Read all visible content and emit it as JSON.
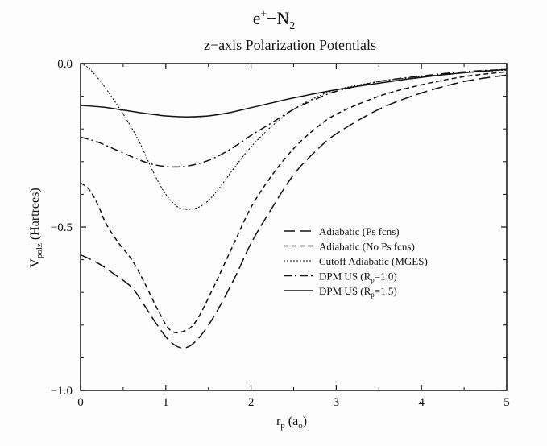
{
  "title": {
    "main_base": "e",
    "main_sup": "+",
    "main_dash": "−N",
    "main_sub": "2",
    "subtitle": "z−axis Polarization Potentials"
  },
  "chart_data": {
    "type": "line",
    "xlabel": {
      "base": "r",
      "sub": "p",
      "rest": " (a",
      "sub2": "o",
      "close": ")"
    },
    "ylabel": {
      "base": "V",
      "sub": "polz",
      "rest": " (Hartrees)"
    },
    "xlim": [
      0,
      5
    ],
    "ylim": [
      -1.0,
      0.0
    ],
    "xticks": [
      0,
      1,
      2,
      3,
      4,
      5
    ],
    "xtick_labels": [
      "0",
      "1",
      "2",
      "3",
      "4",
      "5"
    ],
    "yticks": [
      0.0,
      -0.5,
      -1.0
    ],
    "ytick_labels": [
      "0.0",
      "−0.5",
      "−1.0"
    ],
    "grid": false,
    "legend_position": "center-right",
    "series": [
      {
        "name": "Adiabatic (Ps fcns)",
        "dash": "14,6",
        "x": [
          0,
          0.2,
          0.4,
          0.6,
          0.75,
          0.9,
          1.05,
          1.2,
          1.35,
          1.55,
          1.8,
          2.0,
          2.25,
          2.5,
          2.75,
          3.0,
          3.5,
          4.0,
          4.5,
          5.0
        ],
        "y": [
          -0.585,
          -0.61,
          -0.645,
          -0.685,
          -0.74,
          -0.8,
          -0.85,
          -0.87,
          -0.85,
          -0.78,
          -0.66,
          -0.55,
          -0.44,
          -0.34,
          -0.27,
          -0.215,
          -0.14,
          -0.09,
          -0.055,
          -0.035
        ]
      },
      {
        "name": "Adiabatic (No Ps fcns)",
        "dash": "6,4",
        "x": [
          0,
          0.1,
          0.2,
          0.3,
          0.45,
          0.6,
          0.75,
          0.9,
          1.05,
          1.2,
          1.35,
          1.55,
          1.8,
          2.0,
          2.25,
          2.5,
          2.75,
          3.0,
          3.5,
          4.0,
          4.5,
          5.0
        ],
        "y": [
          -0.365,
          -0.385,
          -0.43,
          -0.49,
          -0.55,
          -0.6,
          -0.67,
          -0.75,
          -0.815,
          -0.82,
          -0.79,
          -0.69,
          -0.55,
          -0.44,
          -0.34,
          -0.26,
          -0.2,
          -0.155,
          -0.1,
          -0.065,
          -0.04,
          -0.025
        ]
      },
      {
        "name": "Cutoff Adiabatic (MGES)",
        "dash": "2,2",
        "x": [
          0,
          0.1,
          0.25,
          0.4,
          0.55,
          0.7,
          0.85,
          1.0,
          1.15,
          1.3,
          1.45,
          1.6,
          1.8,
          2.0,
          2.25,
          2.5,
          2.75,
          3.0,
          3.5,
          4.0,
          4.5,
          5.0
        ],
        "y": [
          0.0,
          -0.015,
          -0.06,
          -0.115,
          -0.175,
          -0.245,
          -0.33,
          -0.4,
          -0.44,
          -0.445,
          -0.43,
          -0.39,
          -0.32,
          -0.255,
          -0.19,
          -0.14,
          -0.105,
          -0.08,
          -0.055,
          -0.04,
          -0.028,
          -0.02
        ]
      },
      {
        "name": "DPM US (R",
        "name_sub": "p",
        "name_rest": "=1.0)",
        "dash": "10,4,2,4",
        "x": [
          0,
          0.2,
          0.4,
          0.6,
          0.8,
          1.0,
          1.2,
          1.4,
          1.6,
          1.8,
          2.0,
          2.25,
          2.5,
          2.75,
          3.0,
          3.5,
          4.0,
          4.5,
          5.0
        ],
        "y": [
          -0.225,
          -0.24,
          -0.262,
          -0.285,
          -0.305,
          -0.315,
          -0.315,
          -0.305,
          -0.285,
          -0.255,
          -0.22,
          -0.18,
          -0.14,
          -0.11,
          -0.085,
          -0.055,
          -0.038,
          -0.025,
          -0.018
        ]
      },
      {
        "name": "DPM US (R",
        "name_sub": "p",
        "name_rest": "=1.5)",
        "dash": "",
        "x": [
          0,
          0.25,
          0.5,
          0.75,
          1.0,
          1.25,
          1.5,
          1.75,
          2.0,
          2.25,
          2.5,
          3.0,
          3.5,
          4.0,
          4.5,
          5.0
        ],
        "y": [
          -0.128,
          -0.133,
          -0.142,
          -0.152,
          -0.16,
          -0.163,
          -0.16,
          -0.15,
          -0.135,
          -0.12,
          -0.105,
          -0.08,
          -0.06,
          -0.042,
          -0.028,
          -0.018
        ]
      }
    ]
  }
}
